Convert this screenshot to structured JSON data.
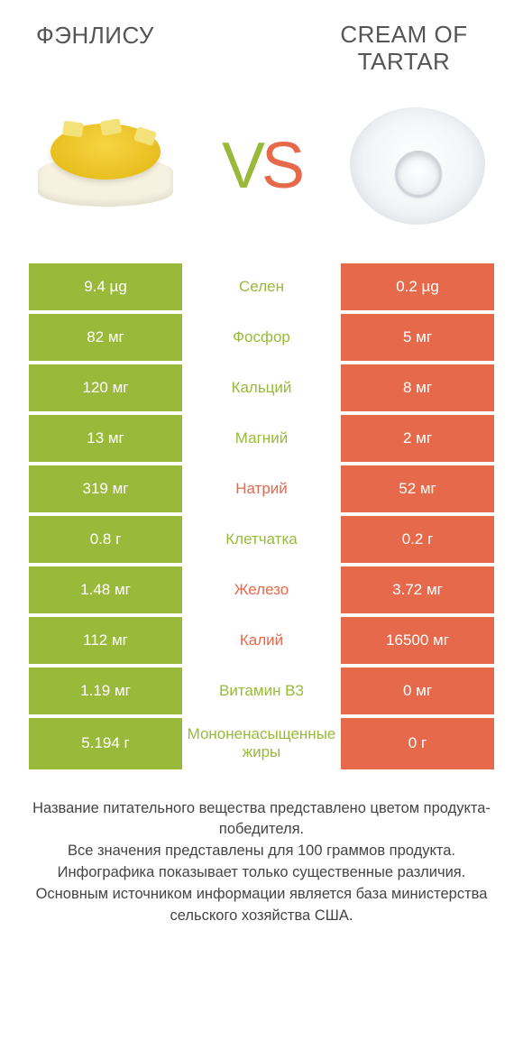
{
  "colors": {
    "left": "#99b93b",
    "right": "#e7694b",
    "mid_bg": "#ffffff",
    "page_bg": "#ffffff",
    "text": "#333333",
    "footer_text": "#444444"
  },
  "header": {
    "left_title": "ФЭНЛИСУ",
    "right_title": "CREAM OF TARTAR",
    "vs_v": "V",
    "vs_s": "S"
  },
  "rows": [
    {
      "left": "9.4 µg",
      "label": "Селен",
      "right": "0.2 µg",
      "winner": "left"
    },
    {
      "left": "82 мг",
      "label": "Фосфор",
      "right": "5 мг",
      "winner": "left"
    },
    {
      "left": "120 мг",
      "label": "Кальций",
      "right": "8 мг",
      "winner": "left"
    },
    {
      "left": "13 мг",
      "label": "Магний",
      "right": "2 мг",
      "winner": "left"
    },
    {
      "left": "319 мг",
      "label": "Натрий",
      "right": "52 мг",
      "winner": "right"
    },
    {
      "left": "0.8 г",
      "label": "Клетчатка",
      "right": "0.2 г",
      "winner": "left"
    },
    {
      "left": "1.48 мг",
      "label": "Железо",
      "right": "3.72 мг",
      "winner": "right"
    },
    {
      "left": "112 мг",
      "label": "Калий",
      "right": "16500 мг",
      "winner": "right"
    },
    {
      "left": "1.19 мг",
      "label": "Витамин B3",
      "right": "0 мг",
      "winner": "left"
    },
    {
      "left": "5.194 г",
      "label": "Мононенасыщенные жиры",
      "right": "0 г",
      "winner": "left"
    }
  ],
  "footer": {
    "line1": "Название питательного вещества представлено цветом продукта-победителя.",
    "line2": "Все значения представлены для 100 граммов продукта.",
    "line3": "Инфографика показывает только существенные различия.",
    "line4": "Основным источником информации является база министерства сельского хозяйства США."
  }
}
